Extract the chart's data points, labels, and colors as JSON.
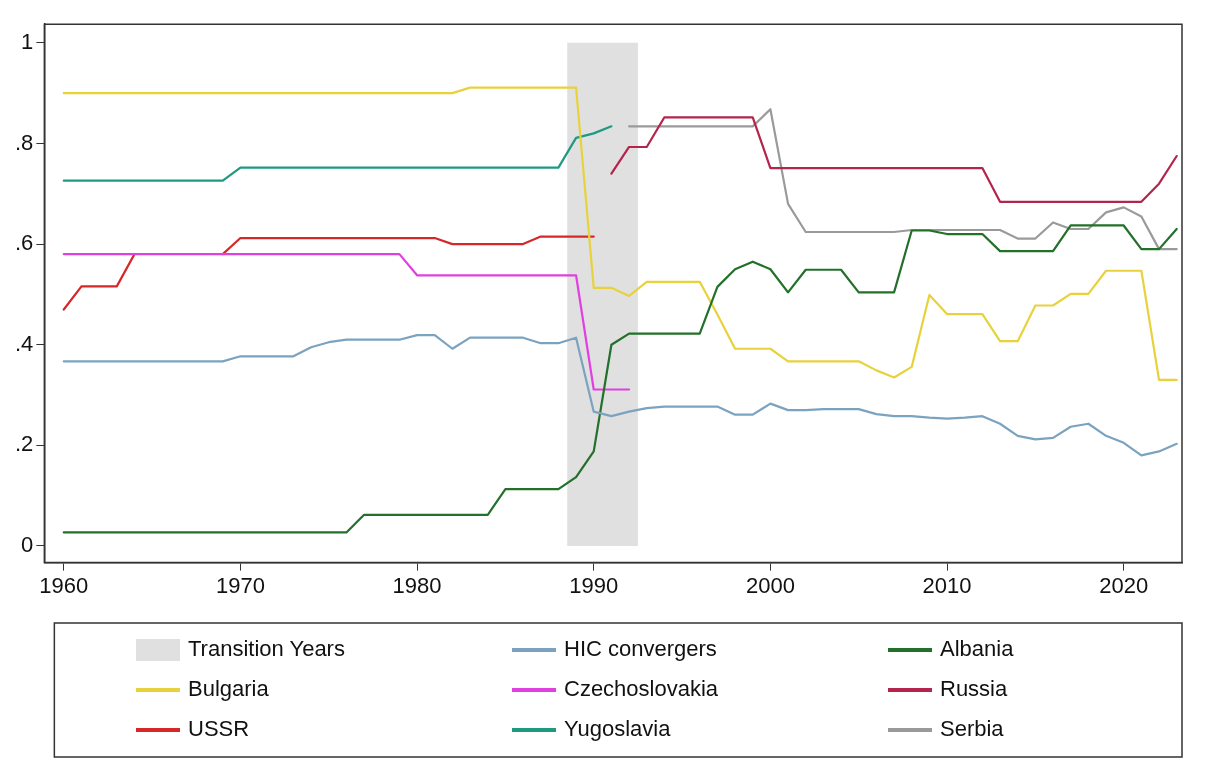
{
  "chart_data": {
    "type": "line",
    "x": [
      1960,
      1961,
      1962,
      1963,
      1964,
      1965,
      1966,
      1967,
      1968,
      1969,
      1970,
      1971,
      1972,
      1973,
      1974,
      1975,
      1976,
      1977,
      1978,
      1979,
      1980,
      1981,
      1982,
      1983,
      1984,
      1985,
      1986,
      1987,
      1988,
      1989,
      1990,
      1991,
      1992,
      1993,
      1994,
      1995,
      1996,
      1997,
      1998,
      1999,
      2000,
      2001,
      2002,
      2003,
      2004,
      2005,
      2006,
      2007,
      2008,
      2009,
      2010,
      2011,
      2012,
      2013,
      2014,
      2015,
      2016,
      2017,
      2018,
      2019,
      2020,
      2021,
      2022,
      2023
    ],
    "series": [
      {
        "name": "HIC convergers",
        "color": "#7ba3c0",
        "values": [
          0.367,
          0.367,
          0.367,
          0.367,
          0.367,
          0.367,
          0.367,
          0.367,
          0.367,
          0.367,
          0.377,
          0.377,
          0.377,
          0.377,
          0.395,
          0.405,
          0.41,
          0.41,
          0.41,
          0.41,
          0.419,
          0.419,
          0.392,
          0.414,
          0.414,
          0.414,
          0.414,
          0.403,
          0.403,
          0.414,
          0.267,
          0.258,
          0.267,
          0.274,
          0.277,
          0.277,
          0.277,
          0.277,
          0.261,
          0.261,
          0.283,
          0.27,
          0.27,
          0.272,
          0.272,
          0.272,
          0.262,
          0.258,
          0.258,
          0.255,
          0.253,
          0.255,
          0.258,
          0.243,
          0.219,
          0.212,
          0.215,
          0.237,
          0.243,
          0.219,
          0.205,
          0.18,
          0.188,
          0.203
        ]
      },
      {
        "name": "Albania",
        "color": "#22702a",
        "values": [
          0.027,
          0.027,
          0.027,
          0.027,
          0.027,
          0.027,
          0.027,
          0.027,
          0.027,
          0.027,
          0.027,
          0.027,
          0.027,
          0.027,
          0.027,
          0.027,
          0.027,
          0.062,
          0.062,
          0.062,
          0.062,
          0.062,
          0.062,
          0.062,
          0.062,
          0.113,
          0.113,
          0.113,
          0.113,
          0.137,
          0.188,
          0.4,
          0.422,
          0.422,
          0.422,
          0.422,
          0.422,
          0.515,
          0.55,
          0.565,
          0.55,
          0.504,
          0.549,
          0.549,
          0.549,
          0.504,
          0.504,
          0.504,
          0.627,
          0.627,
          0.62,
          0.62,
          0.62,
          0.586,
          0.586,
          0.586,
          0.586,
          0.637,
          0.637,
          0.637,
          0.637,
          0.59,
          0.59,
          0.63
        ]
      },
      {
        "name": "Bulgaria",
        "color": "#e8d23c",
        "values": [
          0.9,
          0.9,
          0.9,
          0.9,
          0.9,
          0.9,
          0.9,
          0.9,
          0.9,
          0.9,
          0.9,
          0.9,
          0.9,
          0.9,
          0.9,
          0.9,
          0.9,
          0.9,
          0.9,
          0.9,
          0.9,
          0.9,
          0.9,
          0.911,
          0.911,
          0.911,
          0.911,
          0.911,
          0.911,
          0.911,
          0.513,
          0.513,
          0.497,
          0.525,
          0.525,
          0.525,
          0.525,
          0.46,
          0.392,
          0.392,
          0.392,
          0.367,
          0.367,
          0.367,
          0.367,
          0.367,
          0.349,
          0.335,
          0.356,
          0.499,
          0.461,
          0.461,
          0.461,
          0.407,
          0.407,
          0.478,
          0.478,
          0.501,
          0.501,
          0.547,
          0.547,
          0.547,
          0.33,
          0.33
        ]
      },
      {
        "name": "Czechoslovakia",
        "color": "#e040e0",
        "values": [
          0.58,
          0.58,
          0.58,
          0.58,
          0.58,
          0.58,
          0.58,
          0.58,
          0.58,
          0.58,
          0.58,
          0.58,
          0.58,
          0.58,
          0.58,
          0.58,
          0.58,
          0.58,
          0.58,
          0.58,
          0.538,
          0.538,
          0.538,
          0.538,
          0.538,
          0.538,
          0.538,
          0.538,
          0.538,
          0.538,
          0.311,
          0.311,
          0.311,
          null,
          null,
          null,
          null,
          null,
          null,
          null,
          null,
          null,
          null,
          null,
          null,
          null,
          null,
          null,
          null,
          null,
          null,
          null,
          null,
          null,
          null,
          null,
          null,
          null,
          null,
          null,
          null,
          null,
          null,
          null
        ]
      },
      {
        "name": "Russia",
        "color": "#b3254c",
        "values": [
          null,
          null,
          null,
          null,
          null,
          null,
          null,
          null,
          null,
          null,
          null,
          null,
          null,
          null,
          null,
          null,
          null,
          null,
          null,
          null,
          null,
          null,
          null,
          null,
          null,
          null,
          null,
          null,
          null,
          null,
          null,
          0.74,
          0.793,
          0.793,
          0.852,
          0.852,
          0.852,
          0.852,
          0.852,
          0.852,
          0.751,
          0.751,
          0.751,
          0.751,
          0.751,
          0.751,
          0.751,
          0.751,
          0.751,
          0.751,
          0.751,
          0.751,
          0.751,
          0.684,
          0.684,
          0.684,
          0.684,
          0.684,
          0.684,
          0.684,
          0.684,
          0.684,
          0.72,
          0.775
        ]
      },
      {
        "name": "USSR",
        "color": "#d62828",
        "values": [
          0.47,
          0.516,
          0.516,
          0.516,
          0.58,
          null,
          null,
          null,
          null,
          0.58,
          0.612,
          0.612,
          0.612,
          0.612,
          0.612,
          0.612,
          0.612,
          0.612,
          0.612,
          0.612,
          0.612,
          0.612,
          0.6,
          0.6,
          0.6,
          0.6,
          0.6,
          0.615,
          0.615,
          0.615,
          0.615,
          null,
          null,
          null,
          null,
          null,
          null,
          null,
          null,
          null,
          null,
          null,
          null,
          null,
          null,
          null,
          null,
          null,
          null,
          null,
          null,
          null,
          null,
          null,
          null,
          null,
          null,
          null,
          null,
          null,
          null,
          null,
          null,
          null
        ]
      },
      {
        "name": "Yugoslavia",
        "color": "#1f9a80",
        "values": [
          0.726,
          0.726,
          0.726,
          0.726,
          0.726,
          0.726,
          0.726,
          0.726,
          0.726,
          0.726,
          0.752,
          0.752,
          0.752,
          0.752,
          0.752,
          0.752,
          0.752,
          0.752,
          0.752,
          0.752,
          0.752,
          0.752,
          0.752,
          0.752,
          0.752,
          0.752,
          0.752,
          0.752,
          0.752,
          0.811,
          0.82,
          0.834,
          null,
          null,
          null,
          null,
          null,
          null,
          null,
          null,
          null,
          null,
          null,
          null,
          null,
          null,
          null,
          null,
          null,
          null,
          null,
          null,
          null,
          null,
          null,
          null,
          null,
          null,
          null,
          null,
          null,
          null,
          null,
          null
        ]
      },
      {
        "name": "Serbia",
        "color": "#9a9a9a",
        "values": [
          null,
          null,
          null,
          null,
          null,
          null,
          null,
          null,
          null,
          null,
          null,
          null,
          null,
          null,
          null,
          null,
          null,
          null,
          null,
          null,
          null,
          null,
          null,
          null,
          null,
          null,
          null,
          null,
          null,
          null,
          null,
          null,
          0.834,
          0.834,
          0.834,
          0.834,
          0.834,
          0.834,
          0.834,
          0.834,
          0.868,
          0.68,
          0.624,
          0.624,
          0.624,
          0.624,
          0.624,
          0.624,
          0.628,
          0.628,
          0.628,
          0.628,
          0.628,
          0.628,
          0.611,
          0.611,
          0.643,
          0.63,
          0.63,
          0.663,
          0.673,
          0.655,
          0.59,
          0.59
        ]
      }
    ],
    "bands": [
      {
        "axis": "x",
        "from": 1988.5,
        "to": 1992.5,
        "label": "Transition Years",
        "color": "#e0e0e0"
      }
    ],
    "xlim": [
      1958.9,
      2023.3
    ],
    "xticks": [
      1960,
      1970,
      1980,
      1990,
      2000,
      2010,
      2020
    ],
    "ylim": [
      -0.033,
      1.037
    ],
    "yticks": [
      0,
      {
        "value": 0.2,
        "label": ".2"
      },
      {
        "value": 0.4,
        "label": ".4"
      },
      {
        "value": 0.6,
        "label": ".6"
      },
      {
        "value": 0.8,
        "label": ".8"
      },
      1
    ],
    "grid": false,
    "legend": "bottom",
    "marker": "none",
    "line_style": "solid"
  }
}
